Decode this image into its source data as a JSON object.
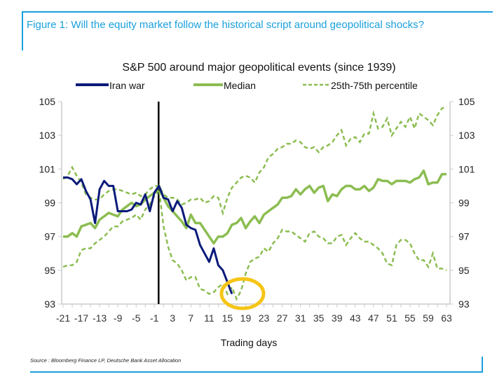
{
  "figure": {
    "title": "Figure 1: Will the equity market follow the historical script around geopolitical shocks?",
    "source": "Source : Bloomberg Finance LP, Deutsche Bank Asset Allocation"
  },
  "colors": {
    "accent": "#1aa0dc",
    "iran_war": "#0a1a7a",
    "median": "#8cbd52",
    "percentile": "#8cbd52",
    "event_line": "#000000",
    "highlight_circle": "#f5c518"
  },
  "chart_data": {
    "type": "line",
    "title": "S&P 500 around major geopolitical events (since 1939)",
    "xlabel": "Trading days",
    "ylabel": "",
    "xlim": [
      -21,
      63
    ],
    "ylim": [
      93,
      105
    ],
    "yticks": [
      93,
      95,
      97,
      99,
      101,
      103,
      105
    ],
    "xticks": [
      -21,
      -17,
      -13,
      -9,
      -5,
      -1,
      3,
      7,
      11,
      15,
      19,
      23,
      27,
      31,
      35,
      39,
      43,
      47,
      51,
      55,
      59,
      63
    ],
    "legend": {
      "placement": "top",
      "entries": [
        "Iran war",
        "Median",
        "25th-75th percentile"
      ]
    },
    "event_day": 0,
    "highlight": {
      "label": "circled trough",
      "x": 18,
      "y": 93.7
    },
    "series": [
      {
        "name": "Iran war",
        "style": "solid",
        "x_start": -21,
        "values": [
          100.5,
          100.5,
          100.4,
          100.1,
          100.4,
          99.7,
          99.2,
          97.8,
          99.8,
          100.3,
          100.0,
          100.0,
          98.5,
          98.5,
          98.5,
          98.6,
          99.0,
          98.9,
          99.5,
          98.5,
          99.6,
          100.0,
          99.3,
          99.2,
          98.5,
          99.1,
          98.7,
          97.7,
          97.5,
          97.4,
          96.5,
          96.0,
          95.5,
          96.3,
          95.3,
          95.0,
          94.3,
          93.6
        ]
      },
      {
        "name": "Median",
        "style": "solid",
        "x_start": -21,
        "values": [
          97.0,
          97.0,
          97.2,
          97.0,
          97.6,
          97.7,
          97.8,
          97.5,
          98.0,
          98.2,
          98.4,
          98.3,
          98.2,
          98.6,
          98.8,
          99.0,
          98.8,
          98.9,
          99.2,
          99.4,
          99.6,
          100.0,
          99.3,
          98.8,
          98.5,
          98.2,
          97.9,
          97.5,
          98.3,
          97.8,
          97.8,
          97.4,
          97.0,
          96.6,
          97.0,
          97.0,
          97.2,
          97.7,
          97.8,
          98.1,
          97.5,
          97.9,
          98.2,
          97.8,
          98.3,
          98.5,
          98.7,
          98.9,
          99.3,
          99.3,
          99.4,
          99.8,
          99.5,
          99.8,
          100.0,
          99.6,
          99.9,
          100.0,
          99.1,
          99.5,
          99.4,
          99.8,
          100.0,
          100.0,
          99.8,
          99.8,
          100.0,
          99.7,
          99.9,
          100.4,
          100.3,
          100.3,
          100.1,
          100.3,
          100.3,
          100.3,
          100.2,
          100.4,
          100.5,
          100.9,
          100.1,
          100.2,
          100.2,
          100.7,
          100.7
        ]
      },
      {
        "name": "25th percentile",
        "style": "dashed",
        "x_start": -21,
        "values": [
          95.2,
          95.3,
          95.3,
          95.5,
          96.2,
          96.3,
          96.3,
          96.6,
          96.8,
          97.0,
          97.3,
          97.6,
          97.6,
          97.9,
          98.0,
          98.1,
          98.3,
          98.0,
          98.6,
          98.9,
          99.4,
          99.8,
          97.6,
          96.4,
          95.6,
          95.4,
          95.0,
          94.4,
          94.6,
          94.6,
          93.9,
          93.8,
          93.6,
          93.7,
          94.0,
          94.2,
          93.6,
          94.0,
          93.3,
          93.8,
          94.8,
          95.5,
          95.7,
          95.8,
          96.3,
          96.1,
          96.6,
          96.9,
          97.4,
          97.3,
          97.3,
          97.1,
          96.9,
          96.7,
          97.2,
          97.3,
          97.0,
          96.9,
          96.6,
          96.6,
          97.0,
          97.1,
          96.5,
          96.9,
          97.2,
          96.9,
          96.7,
          96.7,
          96.5,
          96.3,
          96.0,
          95.4,
          95.3,
          96.5,
          96.8,
          96.8,
          96.6,
          96.0,
          95.6,
          95.6,
          95.2,
          96.0,
          95.1,
          95.1,
          95.0
        ]
      },
      {
        "name": "75th percentile",
        "style": "dashed",
        "x_start": -21,
        "values": [
          100.4,
          100.6,
          101.1,
          100.6,
          100.2,
          99.5,
          99.3,
          99.2,
          99.2,
          99.5,
          99.7,
          99.8,
          99.8,
          99.7,
          99.6,
          99.5,
          99.6,
          99.4,
          99.5,
          99.8,
          100.0,
          100.0,
          99.5,
          99.3,
          99.3,
          99.2,
          98.9,
          99.0,
          99.2,
          99.2,
          99.3,
          99.0,
          99.1,
          99.4,
          99.3,
          98.4,
          99.3,
          99.9,
          100.2,
          100.5,
          100.6,
          100.5,
          100.2,
          100.8,
          101.1,
          101.7,
          101.9,
          102.2,
          102.3,
          102.5,
          102.5,
          102.7,
          102.6,
          102.3,
          102.2,
          102.3,
          102.0,
          102.3,
          102.4,
          102.6,
          103.0,
          103.3,
          102.4,
          102.8,
          102.9,
          102.6,
          103.1,
          103.1,
          104.3,
          103.4,
          103.5,
          104.0,
          103.0,
          103.4,
          103.8,
          103.5,
          104.1,
          103.4,
          104.3,
          104.1,
          103.9,
          103.6,
          104.2,
          104.6,
          104.7
        ]
      }
    ]
  }
}
